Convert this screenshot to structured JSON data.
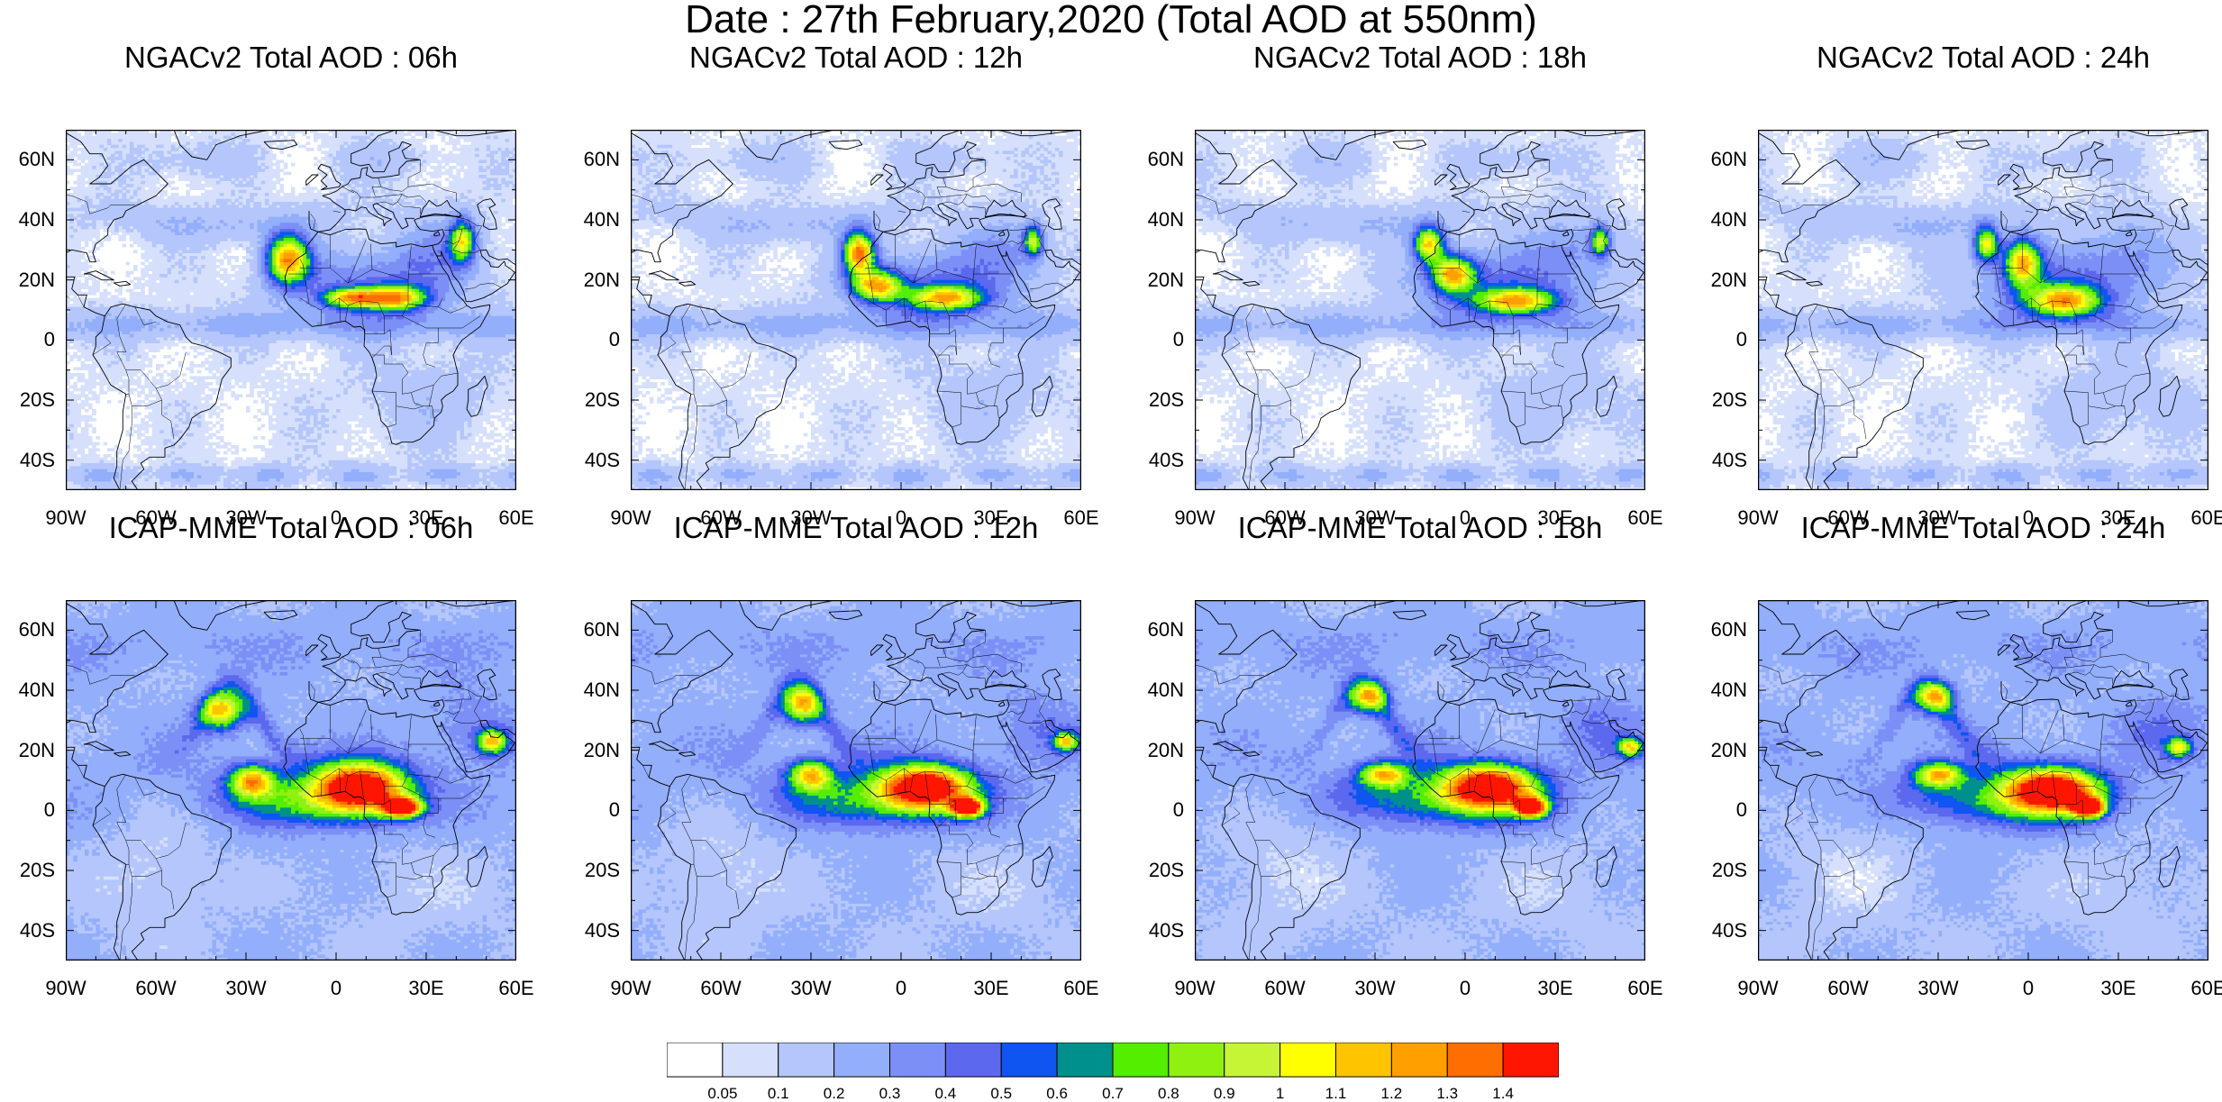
{
  "title": "Date : 27th February,2020 (Total AOD at 550nm)",
  "lon_ticks": [
    "90W",
    "60W",
    "30W",
    "0",
    "30E",
    "60E"
  ],
  "lat_ticks": [
    "60N",
    "40N",
    "20N",
    "0",
    "20S",
    "40S"
  ],
  "panels": [
    {
      "title": "NGACv2 Total AOD : 06h",
      "model": "ngac",
      "hour": 6,
      "plumes": [
        {
          "lon": -16,
          "lat": 27,
          "rx": 7,
          "ry": 8,
          "peak": 1.15
        },
        {
          "lon": 5,
          "lat": 14,
          "rx": 9,
          "ry": 3,
          "peak": 0.9
        },
        {
          "lon": 20,
          "lat": 14,
          "rx": 10,
          "ry": 4,
          "peak": 0.95
        },
        {
          "lon": 42,
          "lat": 33,
          "rx": 4,
          "ry": 7,
          "peak": 0.85
        }
      ]
    },
    {
      "title": "NGACv2 Total AOD : 12h",
      "model": "ngac",
      "hour": 12,
      "plumes": [
        {
          "lon": -14,
          "lat": 29,
          "rx": 5,
          "ry": 7,
          "peak": 1.2
        },
        {
          "lon": -8,
          "lat": 18,
          "rx": 8,
          "ry": 5,
          "peak": 0.95
        },
        {
          "lon": 15,
          "lat": 14,
          "rx": 12,
          "ry": 4,
          "peak": 0.9
        },
        {
          "lon": 44,
          "lat": 33,
          "rx": 3,
          "ry": 5,
          "peak": 0.8
        }
      ]
    },
    {
      "title": "NGACv2 Total AOD : 18h",
      "model": "ngac",
      "hour": 18,
      "plumes": [
        {
          "lon": -12,
          "lat": 32,
          "rx": 5,
          "ry": 6,
          "peak": 1.0
        },
        {
          "lon": -4,
          "lat": 22,
          "rx": 7,
          "ry": 6,
          "peak": 1.0
        },
        {
          "lon": 17,
          "lat": 13,
          "rx": 13,
          "ry": 4,
          "peak": 0.95
        },
        {
          "lon": 45,
          "lat": 33,
          "rx": 3,
          "ry": 5,
          "peak": 0.8
        }
      ]
    },
    {
      "title": "NGACv2 Total AOD : 24h",
      "model": "ngac",
      "hour": 24,
      "plumes": [
        {
          "lon": -14,
          "lat": 32,
          "rx": 4,
          "ry": 6,
          "peak": 0.95
        },
        {
          "lon": -2,
          "lat": 26,
          "rx": 6,
          "ry": 8,
          "peak": 1.0
        },
        {
          "lon": 12,
          "lat": 13,
          "rx": 12,
          "ry": 5,
          "peak": 0.95
        }
      ]
    },
    {
      "title": "ICAP-MME Total AOD : 06h",
      "model": "icap",
      "hour": 6,
      "plumes": [
        {
          "lon": -38,
          "lat": 33,
          "rx": 7,
          "ry": 6,
          "peak": 0.85
        },
        {
          "lon": -28,
          "lat": 10,
          "rx": 7,
          "ry": 5,
          "peak": 0.85
        },
        {
          "lon": 8,
          "lat": 8,
          "rx": 15,
          "ry": 8,
          "peak": 1.4
        },
        {
          "lon": 22,
          "lat": 1,
          "rx": 6,
          "ry": 3,
          "peak": 1.45
        },
        {
          "lon": 52,
          "lat": 23,
          "rx": 5,
          "ry": 4,
          "peak": 0.85
        }
      ]
    },
    {
      "title": "ICAP-MME Total AOD : 12h",
      "model": "icap",
      "hour": 12,
      "plumes": [
        {
          "lon": -33,
          "lat": 35,
          "rx": 6,
          "ry": 6,
          "peak": 0.85
        },
        {
          "lon": -30,
          "lat": 12,
          "rx": 7,
          "ry": 5,
          "peak": 0.85
        },
        {
          "lon": 8,
          "lat": 8,
          "rx": 15,
          "ry": 7,
          "peak": 1.4
        },
        {
          "lon": 22,
          "lat": 1,
          "rx": 5,
          "ry": 3,
          "peak": 1.45
        },
        {
          "lon": 55,
          "lat": 23,
          "rx": 4,
          "ry": 3,
          "peak": 0.8
        }
      ]
    },
    {
      "title": "ICAP-MME Total AOD : 18h",
      "model": "icap",
      "hour": 18,
      "plumes": [
        {
          "lon": -32,
          "lat": 38,
          "rx": 6,
          "ry": 5,
          "peak": 0.8
        },
        {
          "lon": -27,
          "lat": 12,
          "rx": 8,
          "ry": 4,
          "peak": 0.85
        },
        {
          "lon": 8,
          "lat": 8,
          "rx": 15,
          "ry": 7,
          "peak": 1.4
        },
        {
          "lon": 22,
          "lat": 1,
          "rx": 5,
          "ry": 3,
          "peak": 1.45
        },
        {
          "lon": 55,
          "lat": 21,
          "rx": 4,
          "ry": 3,
          "peak": 0.8
        }
      ]
    },
    {
      "title": "ICAP-MME Total AOD : 24h",
      "model": "icap",
      "hour": 24,
      "plumes": [
        {
          "lon": -31,
          "lat": 38,
          "rx": 6,
          "ry": 5,
          "peak": 0.8
        },
        {
          "lon": -30,
          "lat": 12,
          "rx": 8,
          "ry": 4,
          "peak": 0.85
        },
        {
          "lon": 8,
          "lat": 7,
          "rx": 15,
          "ry": 7,
          "peak": 1.4
        },
        {
          "lon": 20,
          "lat": 1,
          "rx": 5,
          "ry": 3,
          "peak": 1.45
        },
        {
          "lon": 50,
          "lat": 21,
          "rx": 4,
          "ry": 3,
          "peak": 0.75
        }
      ]
    }
  ],
  "colorbar": {
    "labels": [
      "0.05",
      "0.1",
      "0.2",
      "0.3",
      "0.4",
      "0.5",
      "0.6",
      "0.7",
      "0.8",
      "0.9",
      "1",
      "1.1",
      "1.2",
      "1.3",
      "1.4"
    ],
    "colors": [
      "#ffffff",
      "#d6e0fc",
      "#b4c6fb",
      "#93aefb",
      "#7c8ff7",
      "#5c68ee",
      "#0e55f2",
      "#00908c",
      "#53ee00",
      "#8ff10f",
      "#c6f536",
      "#ffff00",
      "#ffc400",
      "#ff9f00",
      "#ff6e00",
      "#ff1600"
    ]
  }
}
